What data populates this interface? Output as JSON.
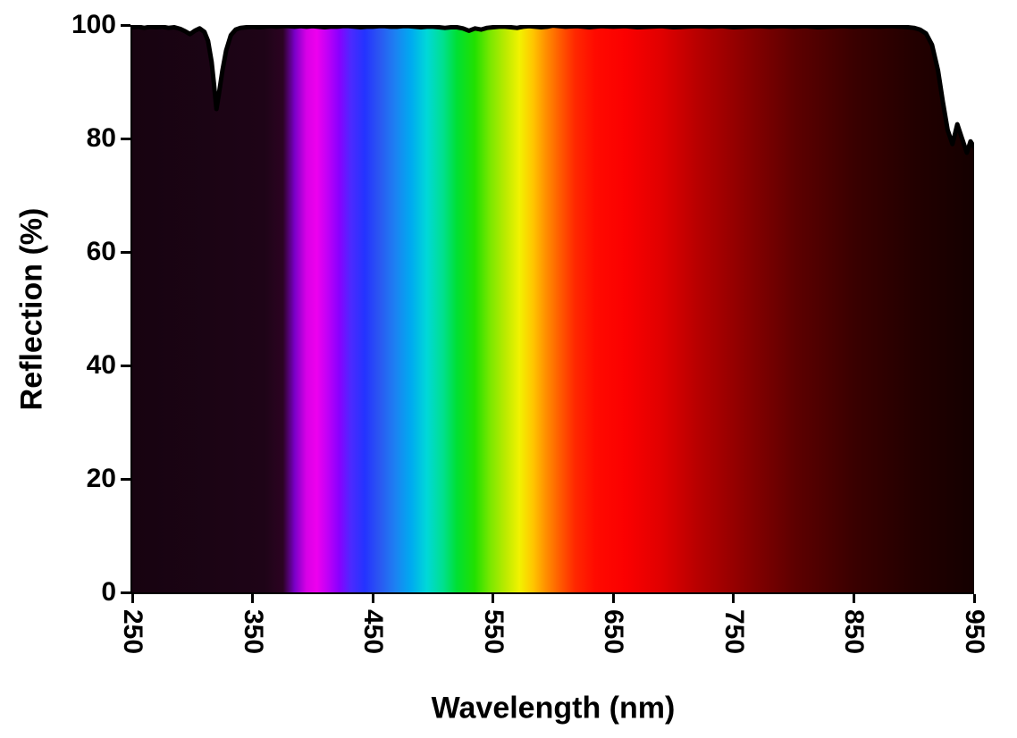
{
  "chart_data": {
    "type": "area",
    "title": "",
    "xlabel": "Wavelength (nm)",
    "ylabel": "Reflection (%)",
    "xlim": [
      250,
      950
    ],
    "ylim": [
      0,
      100
    ],
    "x_ticks": [
      250,
      350,
      450,
      550,
      650,
      750,
      850,
      950
    ],
    "y_ticks": [
      0,
      20,
      40,
      60,
      80,
      100
    ],
    "x_tick_rotation": 90,
    "grid": false,
    "legend": "none",
    "background_color": "#ffffff",
    "line_color": "#000000",
    "line_width": 5,
    "fill_style": "visible-light-spectrum-gradient-under-curve",
    "spectrum_fill": [
      {
        "pos": 0,
        "color": "#170310"
      },
      {
        "pos": 15.7,
        "color": "#1e0417"
      },
      {
        "pos": 17.9,
        "color": "#2c0322"
      },
      {
        "pos": 19.3,
        "color": "#7a00c8"
      },
      {
        "pos": 20.7,
        "color": "#d800e6"
      },
      {
        "pos": 21.9,
        "color": "#ee00ee"
      },
      {
        "pos": 23.1,
        "color": "#c400f6"
      },
      {
        "pos": 24.6,
        "color": "#8800ff"
      },
      {
        "pos": 26.0,
        "color": "#4b2aff"
      },
      {
        "pos": 27.6,
        "color": "#2433ff"
      },
      {
        "pos": 29.3,
        "color": "#2b55f2"
      },
      {
        "pos": 31.1,
        "color": "#1e7ef2"
      },
      {
        "pos": 33.1,
        "color": "#00aaf0"
      },
      {
        "pos": 35.0,
        "color": "#00d8d8"
      },
      {
        "pos": 36.9,
        "color": "#00e090"
      },
      {
        "pos": 38.6,
        "color": "#00e032"
      },
      {
        "pos": 40.7,
        "color": "#22e000"
      },
      {
        "pos": 42.6,
        "color": "#7de800"
      },
      {
        "pos": 44.3,
        "color": "#baea00"
      },
      {
        "pos": 46.0,
        "color": "#f2f200"
      },
      {
        "pos": 47.6,
        "color": "#ffc600"
      },
      {
        "pos": 49.1,
        "color": "#ff9000"
      },
      {
        "pos": 50.9,
        "color": "#ff5800"
      },
      {
        "pos": 52.6,
        "color": "#ff2800"
      },
      {
        "pos": 55.0,
        "color": "#ff0a00"
      },
      {
        "pos": 58.6,
        "color": "#fb0000"
      },
      {
        "pos": 62.9,
        "color": "#e00000"
      },
      {
        "pos": 67.1,
        "color": "#b80000"
      },
      {
        "pos": 72.9,
        "color": "#8a0000"
      },
      {
        "pos": 78.6,
        "color": "#5e0000"
      },
      {
        "pos": 85.7,
        "color": "#3a0000"
      },
      {
        "pos": 92.9,
        "color": "#230000"
      },
      {
        "pos": 100,
        "color": "#140000"
      }
    ],
    "series": [
      {
        "name": "Reflection",
        "x": [
          250,
          255,
          260,
          265,
          270,
          275,
          280,
          285,
          290,
          294,
          298,
          302,
          306,
          310,
          313,
          316,
          318,
          320,
          322,
          325,
          328,
          332,
          336,
          340,
          345,
          350,
          355,
          360,
          365,
          370,
          375,
          380,
          385,
          390,
          395,
          400,
          405,
          410,
          415,
          420,
          425,
          430,
          435,
          440,
          445,
          450,
          455,
          460,
          465,
          470,
          475,
          480,
          485,
          490,
          495,
          500,
          505,
          510,
          515,
          520,
          525,
          530,
          535,
          540,
          545,
          550,
          555,
          560,
          565,
          570,
          575,
          580,
          585,
          590,
          595,
          600,
          610,
          620,
          630,
          640,
          650,
          660,
          670,
          680,
          690,
          700,
          710,
          720,
          730,
          740,
          750,
          760,
          770,
          780,
          790,
          800,
          810,
          820,
          830,
          840,
          850,
          860,
          870,
          880,
          890,
          895,
          900,
          905,
          910,
          915,
          920,
          924,
          928,
          932,
          936,
          940,
          944,
          947,
          950
        ],
        "y": [
          99.6,
          99.7,
          99.5,
          99.7,
          99.6,
          99.7,
          99.5,
          99.6,
          99.3,
          98.9,
          98.4,
          99.0,
          99.4,
          98.8,
          97.2,
          93.5,
          89.5,
          85.2,
          87.8,
          92.0,
          95.5,
          98.2,
          99.2,
          99.5,
          99.6,
          99.7,
          99.6,
          99.7,
          99.8,
          99.7,
          99.8,
          99.8,
          99.7,
          99.8,
          99.7,
          99.8,
          99.7,
          99.6,
          99.7,
          99.7,
          99.8,
          99.8,
          99.7,
          99.6,
          99.7,
          99.7,
          99.8,
          99.8,
          99.7,
          99.7,
          99.8,
          99.8,
          99.7,
          99.6,
          99.7,
          99.7,
          99.6,
          99.5,
          99.6,
          99.6,
          99.4,
          99.0,
          99.4,
          99.2,
          99.5,
          99.6,
          99.7,
          99.7,
          99.6,
          99.5,
          99.7,
          99.8,
          99.7,
          99.6,
          99.7,
          99.9,
          99.7,
          99.8,
          99.6,
          99.8,
          99.7,
          99.8,
          99.6,
          99.7,
          99.8,
          99.6,
          99.7,
          99.8,
          99.7,
          99.8,
          99.6,
          99.7,
          99.8,
          99.7,
          99.8,
          99.7,
          99.8,
          99.6,
          99.7,
          99.8,
          99.7,
          99.8,
          99.7,
          99.8,
          99.7,
          99.6,
          99.5,
          99.2,
          98.5,
          96.5,
          92.0,
          86.5,
          81.5,
          79.0,
          82.5,
          80.0,
          77.5,
          79.5,
          78.5
        ]
      }
    ],
    "annotations": {
      "left_dip": {
        "wavelength": 320,
        "reflection": 85
      },
      "right_dip": {
        "wavelength": 944,
        "reflection": 77.5
      }
    }
  }
}
